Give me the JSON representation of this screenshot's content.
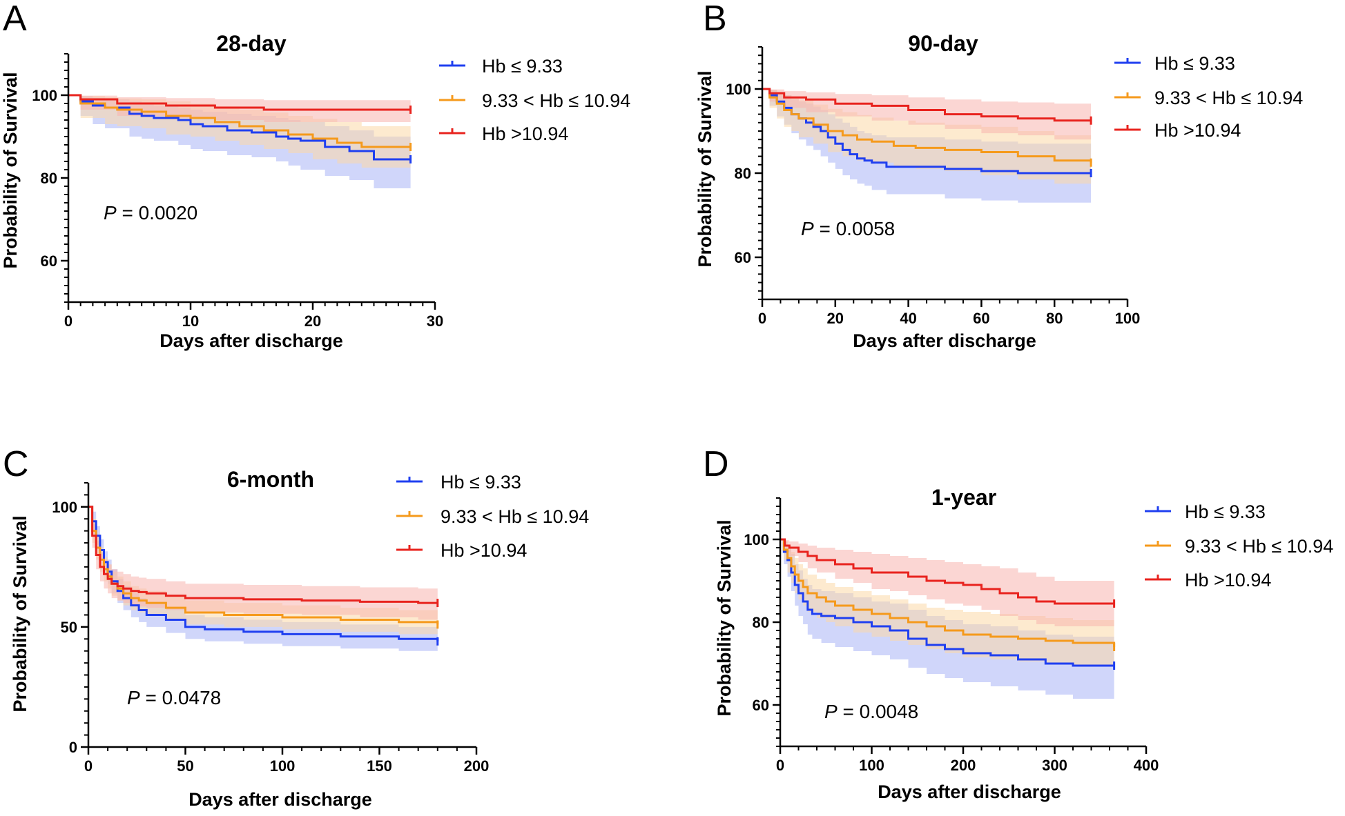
{
  "colors": {
    "low": "#1f3ff0",
    "mid": "#f59a1c",
    "high": "#e8231e",
    "low_band": "#a9b4f6",
    "mid_band": "#fbd9a8",
    "high_band": "#f8b4ae",
    "axis": "#000000"
  },
  "chart_data": [
    {
      "panel": "A",
      "type": "line",
      "title": "28-day",
      "xlabel": "Days after discharge",
      "ylabel": "Probability of Survival",
      "xlim": [
        0,
        30
      ],
      "ylim": [
        50,
        110
      ],
      "xticks": [
        0,
        10,
        20,
        30
      ],
      "yticks": [
        60,
        80,
        100
      ],
      "x_minor_step": 1,
      "y_minor_step": 2,
      "p_label": "P",
      "p_text": " = 0.0020",
      "series": [
        {
          "key": "low",
          "name": "Hb ≤ 9.33",
          "x": [
            0,
            1,
            2,
            3,
            5,
            6,
            7,
            9,
            10,
            11,
            13,
            15,
            17,
            18,
            19,
            21,
            23,
            25,
            28
          ],
          "values": [
            100,
            98.5,
            97.5,
            97,
            95.5,
            95,
            94.5,
            94,
            93,
            92.5,
            91.5,
            91,
            90,
            89.5,
            89,
            87.5,
            86.5,
            84.5,
            84.5
          ],
          "lower": [
            100,
            95,
            93,
            92,
            90,
            89.5,
            89,
            88,
            87,
            86.5,
            85.5,
            85,
            84,
            83,
            82,
            80.5,
            79.5,
            77.5,
            77.5
          ],
          "upper": [
            100,
            99.8,
            99.4,
            99,
            98.5,
            98,
            97.5,
            97,
            96.5,
            96,
            95.5,
            95,
            94.5,
            94,
            93.5,
            92.5,
            91.5,
            90,
            90
          ]
        },
        {
          "key": "mid",
          "name": "9.33 < Hb ≤ 10.94",
          "x": [
            0,
            1,
            3,
            4,
            6,
            8,
            10,
            12,
            14,
            16,
            18,
            20,
            22,
            24,
            28
          ],
          "values": [
            100,
            98,
            97,
            96.5,
            96,
            95,
            94.5,
            93.5,
            92.5,
            91.5,
            90.5,
            89.5,
            88.5,
            87.5,
            87.5
          ],
          "lower": [
            100,
            94.5,
            93,
            92.5,
            92,
            90.5,
            90,
            89,
            88,
            87,
            86,
            84.5,
            83.5,
            82.5,
            82.5
          ],
          "upper": [
            100,
            99.8,
            99.5,
            99.2,
            99,
            98.5,
            98,
            97.3,
            96.5,
            95.8,
            95,
            94.3,
            93.5,
            92.5,
            92.5
          ]
        },
        {
          "key": "high",
          "name": "Hb >10.94",
          "x": [
            0,
            1,
            4,
            8,
            12,
            16,
            28
          ],
          "values": [
            100,
            99,
            98,
            97.5,
            97,
            96.5,
            96.5
          ],
          "lower": [
            100,
            96.5,
            95,
            94.5,
            94,
            93.5,
            93.5
          ],
          "upper": [
            100,
            99.9,
            99.5,
            99.3,
            99,
            98.8,
            98.8
          ]
        }
      ]
    },
    {
      "panel": "B",
      "type": "line",
      "title": "90-day",
      "xlabel": "Days after discharge",
      "ylabel": "Probability of Survival",
      "xlim": [
        0,
        100
      ],
      "ylim": [
        50,
        110
      ],
      "xticks": [
        0,
        20,
        40,
        60,
        80,
        100
      ],
      "yticks": [
        60,
        80,
        100
      ],
      "x_minor_step": 5,
      "y_minor_step": 2,
      "p_label": "P",
      "p_text": " = 0.0058",
      "series": [
        {
          "key": "low",
          "name": "Hb ≤ 9.33",
          "x": [
            0,
            2,
            4,
            6,
            8,
            10,
            12,
            14,
            16,
            18,
            20,
            22,
            24,
            26,
            28,
            30,
            34,
            40,
            50,
            60,
            70,
            90
          ],
          "values": [
            100,
            98.5,
            97,
            95.5,
            94,
            93,
            92,
            91,
            90,
            88.5,
            87,
            85.5,
            84.5,
            83.5,
            83,
            82.5,
            81.5,
            81.5,
            81,
            80.5,
            80,
            80
          ],
          "lower": [
            100,
            96,
            93.5,
            91.5,
            89.5,
            88,
            86.5,
            85.5,
            84,
            82.5,
            81,
            79.5,
            78.5,
            77.5,
            77,
            76,
            75,
            75,
            74,
            73.5,
            73,
            73
          ],
          "upper": [
            100,
            99.8,
            99.3,
            98.5,
            97.5,
            97,
            96.5,
            95.8,
            95,
            94,
            93,
            92,
            91,
            90,
            89.5,
            89,
            88.5,
            88.5,
            88,
            87.5,
            87,
            87
          ]
        },
        {
          "key": "mid",
          "name": "9.33 < Hb ≤ 10.94",
          "x": [
            0,
            2,
            4,
            6,
            8,
            10,
            14,
            18,
            22,
            26,
            30,
            36,
            42,
            50,
            60,
            70,
            80,
            90
          ],
          "values": [
            100,
            98,
            96.5,
            95,
            94,
            93,
            91.5,
            90,
            89,
            88,
            87.5,
            86.5,
            86,
            85.5,
            85,
            84,
            83,
            82.5
          ],
          "lower": [
            100,
            95.5,
            93,
            91,
            90,
            88.5,
            87,
            85,
            84,
            83,
            82.5,
            81.5,
            81,
            80.5,
            79.5,
            78.5,
            77.5,
            77
          ],
          "upper": [
            100,
            99.8,
            99.2,
            98.5,
            98,
            97.3,
            96.3,
            95.3,
            94.5,
            93.8,
            93.2,
            92.5,
            92,
            91.5,
            91,
            90,
            89,
            88.5
          ]
        },
        {
          "key": "high",
          "name": "Hb >10.94",
          "x": [
            0,
            2,
            6,
            12,
            20,
            30,
            40,
            50,
            60,
            70,
            80,
            90
          ],
          "values": [
            100,
            99,
            98,
            97.5,
            96.5,
            96,
            95,
            94,
            93.5,
            93,
            92.5,
            92.5
          ],
          "lower": [
            100,
            97,
            95.5,
            94.5,
            93.5,
            92.5,
            91.5,
            90.5,
            89.5,
            89,
            88,
            88
          ],
          "upper": [
            100,
            99.9,
            99.5,
            99.2,
            98.8,
            98.5,
            98,
            97.5,
            97,
            96.8,
            96.5,
            96.5
          ]
        }
      ]
    },
    {
      "panel": "C",
      "type": "line",
      "title": "6-month",
      "xlabel": "Days after discharge",
      "ylabel": "Probability of Survival",
      "xlim": [
        0,
        200
      ],
      "ylim": [
        0,
        110
      ],
      "xticks": [
        0,
        50,
        100,
        150,
        200
      ],
      "yticks": [
        0,
        50,
        100
      ],
      "x_minor_step": 10,
      "y_minor_step": 5,
      "p_label": "P",
      "p_text": " = 0.0478",
      "series": [
        {
          "key": "low",
          "name": "Hb ≤ 9.33",
          "x": [
            0,
            2,
            4,
            6,
            8,
            10,
            12,
            15,
            18,
            22,
            26,
            30,
            40,
            50,
            60,
            80,
            100,
            130,
            160,
            180
          ],
          "values": [
            100,
            94,
            88,
            82,
            77,
            73,
            69,
            65,
            62,
            59,
            57,
            55,
            53,
            50,
            49,
            48,
            47,
            46,
            45,
            44
          ],
          "lower": [
            100,
            90,
            84,
            77.5,
            72.5,
            68,
            64,
            60,
            57,
            54,
            52,
            50,
            47.5,
            45,
            44,
            43,
            42,
            41,
            40,
            38
          ],
          "upper": [
            100,
            98,
            92,
            86.5,
            81.5,
            78,
            74,
            70,
            67,
            64,
            62,
            60,
            58,
            55,
            54,
            53,
            52,
            51,
            50,
            49
          ]
        },
        {
          "key": "mid",
          "name": "9.33 < Hb ≤ 10.94",
          "x": [
            0,
            2,
            4,
            6,
            8,
            10,
            12,
            15,
            18,
            22,
            26,
            30,
            40,
            50,
            70,
            100,
            130,
            160,
            180
          ],
          "values": [
            100,
            90,
            83,
            78,
            74,
            71,
            68,
            66,
            64,
            62,
            61,
            60,
            58,
            56,
            55,
            54,
            53,
            52,
            51
          ],
          "lower": [
            100,
            85,
            78,
            73,
            69,
            66,
            63,
            61,
            59,
            57,
            56,
            55,
            53,
            51,
            50,
            49,
            48,
            47,
            46
          ],
          "upper": [
            100,
            95,
            88,
            83,
            79,
            76,
            73,
            71,
            69,
            67,
            66,
            65,
            63,
            61,
            60,
            59,
            58,
            57,
            56
          ]
        },
        {
          "key": "high",
          "name": "Hb >10.94",
          "x": [
            0,
            2,
            4,
            6,
            8,
            10,
            12,
            15,
            18,
            22,
            26,
            30,
            40,
            50,
            80,
            110,
            140,
            170,
            180
          ],
          "values": [
            100,
            88,
            80,
            75,
            72,
            70,
            68,
            67,
            66,
            65,
            64.5,
            64,
            63,
            62,
            61.5,
            61,
            60.5,
            60,
            60
          ],
          "lower": [
            100,
            83,
            74,
            69,
            66,
            64,
            62,
            61,
            60,
            59,
            58.5,
            58,
            57,
            56,
            55.5,
            55,
            54,
            53,
            53
          ],
          "upper": [
            100,
            93,
            86,
            81,
            78,
            76,
            74,
            73,
            72,
            71,
            70.5,
            70,
            69,
            68,
            67.5,
            67,
            66.5,
            66,
            66
          ]
        }
      ]
    },
    {
      "panel": "D",
      "type": "line",
      "title": "1-year",
      "xlabel": "Days after discharge",
      "ylabel": "Probability of Survival",
      "xlim": [
        0,
        400
      ],
      "ylim": [
        50,
        110
      ],
      "xticks": [
        0,
        100,
        200,
        300,
        400
      ],
      "yticks": [
        60,
        80,
        100
      ],
      "x_minor_step": 20,
      "y_minor_step": 2,
      "p_label": "P",
      "p_text": " = 0.0048",
      "series": [
        {
          "key": "low",
          "name": "Hb ≤ 9.33",
          "x": [
            0,
            4,
            8,
            12,
            16,
            20,
            25,
            30,
            35,
            45,
            60,
            80,
            100,
            120,
            140,
            160,
            180,
            200,
            230,
            260,
            290,
            320,
            365
          ],
          "values": [
            100,
            97,
            95,
            92,
            89,
            87,
            85,
            83,
            82,
            81.5,
            81,
            80,
            79,
            78,
            76,
            74.5,
            73.5,
            72.5,
            72,
            71,
            70,
            69.5,
            69.5
          ],
          "lower": [
            100,
            94,
            91,
            87.5,
            84,
            81.5,
            79.5,
            77,
            76,
            75,
            74,
            73,
            72,
            71,
            69,
            67.5,
            66.5,
            65.5,
            64.5,
            63.5,
            62.5,
            61.5,
            61.5
          ],
          "upper": [
            100,
            99.5,
            98.5,
            96.5,
            94,
            92.5,
            90.5,
            89,
            88,
            87.5,
            87,
            86,
            85,
            84.5,
            83,
            81.5,
            80.5,
            79.5,
            79,
            78,
            77,
            76.5,
            76.5
          ]
        },
        {
          "key": "mid",
          "name": "9.33 < Hb ≤ 10.94",
          "x": [
            0,
            4,
            8,
            12,
            16,
            20,
            25,
            30,
            40,
            50,
            60,
            80,
            100,
            120,
            140,
            160,
            180,
            200,
            230,
            260,
            290,
            320,
            365
          ],
          "values": [
            100,
            97.5,
            95.5,
            93.5,
            91.5,
            90,
            88.5,
            87,
            86,
            85,
            84,
            83,
            82,
            81,
            80,
            79,
            78,
            77,
            76.5,
            76,
            75.5,
            75,
            74
          ],
          "lower": [
            100,
            95,
            92,
            89.5,
            87,
            85.5,
            84,
            82.5,
            81,
            80,
            79,
            77.5,
            76.5,
            75.5,
            74.5,
            73.5,
            72.5,
            71.5,
            71,
            70.5,
            70,
            69.5,
            68
          ],
          "upper": [
            100,
            99.5,
            98.5,
            97,
            95.5,
            94,
            93,
            91.5,
            90.5,
            89.5,
            88.5,
            87.5,
            86.5,
            85.5,
            84.5,
            83.5,
            83,
            82.5,
            82,
            81.5,
            81,
            80.5,
            80
          ]
        },
        {
          "key": "high",
          "name": "Hb >10.94",
          "x": [
            0,
            5,
            10,
            20,
            30,
            40,
            60,
            80,
            100,
            120,
            140,
            160,
            180,
            200,
            220,
            240,
            260,
            280,
            300,
            365
          ],
          "values": [
            100,
            98.5,
            98,
            97,
            96,
            95,
            94,
            93,
            92,
            92,
            91,
            90,
            89.5,
            89,
            88,
            87,
            86,
            85,
            84.5,
            84.5
          ],
          "lower": [
            100,
            97,
            96,
            94.5,
            93,
            92,
            90.5,
            89.5,
            88,
            87.5,
            86.5,
            85.5,
            84.5,
            84,
            83,
            81.5,
            80.5,
            79.5,
            79,
            79
          ],
          "upper": [
            100,
            99.8,
            99.5,
            99,
            98.5,
            98,
            97.5,
            97,
            96.5,
            96,
            95.5,
            95,
            94.5,
            94,
            93.5,
            93,
            92,
            91,
            90,
            90
          ]
        }
      ]
    }
  ]
}
